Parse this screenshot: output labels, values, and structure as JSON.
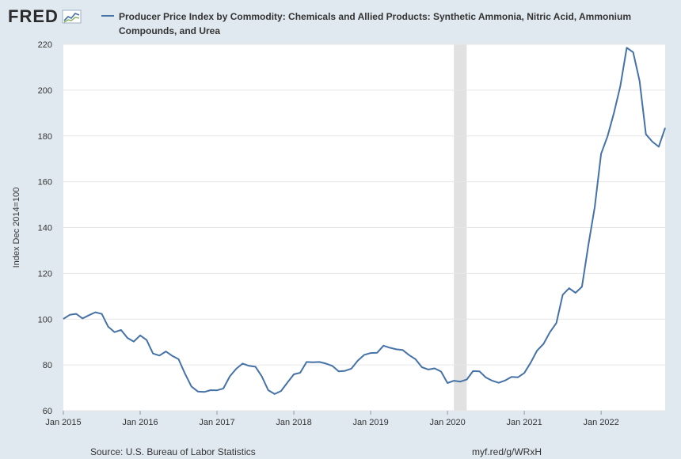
{
  "header": {
    "logo_text": "FRED",
    "legend_title": "Producer Price Index by Commodity: Chemicals and Allied Products: Synthetic Ammonia, Nitric Acid, Ammonium Compounds, and Urea",
    "series_color": "#4572a7"
  },
  "footer": {
    "source": "Source: U.S. Bureau of Labor Statistics",
    "link": "myf.red/g/WRxH"
  },
  "chart_data": {
    "type": "line",
    "title": "Producer Price Index by Commodity: Chemicals and Allied Products: Synthetic Ammonia, Nitric Acid, Ammonium Compounds, and Urea",
    "ylabel": "Index Dec 2014=100",
    "xlabel": "",
    "ylim": [
      60,
      220
    ],
    "yticks": [
      60,
      80,
      100,
      120,
      140,
      160,
      180,
      200,
      220
    ],
    "xlim": [
      "2015-01",
      "2022-11"
    ],
    "xticks": [
      "Jan 2015",
      "Jan 2016",
      "Jan 2017",
      "Jan 2018",
      "Jan 2019",
      "Jan 2020",
      "Jan 2021",
      "Jan 2022"
    ],
    "recession": {
      "start": "2020-02",
      "end": "2020-04"
    },
    "series": [
      {
        "name": "Synthetic Ammonia, Nitric Acid, Ammonium Compounds, and Urea",
        "start": "2015-01",
        "frequency": "monthly",
        "values": [
          100.1,
          101.9,
          102.3,
          100.3,
          101.7,
          103.0,
          102.3,
          96.7,
          94.3,
          95.3,
          91.8,
          90.2,
          92.9,
          90.9,
          85.0,
          84.1,
          85.9,
          84.0,
          82.5,
          76.2,
          70.6,
          68.4,
          68.2,
          69.0,
          68.9,
          69.7,
          75.0,
          78.3,
          80.6,
          79.6,
          79.2,
          75.0,
          69.0,
          67.3,
          68.6,
          72.3,
          75.9,
          76.6,
          81.3,
          81.2,
          81.3,
          80.6,
          79.6,
          77.2,
          77.4,
          78.4,
          81.9,
          84.4,
          85.2,
          85.3,
          88.4,
          87.5,
          86.8,
          86.5,
          84.3,
          82.5,
          79.0,
          78.0,
          78.5,
          77.1,
          72.1,
          73.1,
          72.7,
          73.6,
          77.3,
          77.2,
          74.5,
          73.1,
          72.2,
          73.2,
          74.8,
          74.6,
          76.5,
          81.0,
          86.3,
          89.2,
          94.3,
          98.3,
          110.6,
          113.5,
          111.5,
          114.1,
          132.3,
          149.0,
          172.2,
          179.8,
          190.0,
          201.8,
          218.5,
          216.5,
          204.0,
          180.7,
          177.5,
          175.3,
          183.5
        ]
      }
    ]
  }
}
